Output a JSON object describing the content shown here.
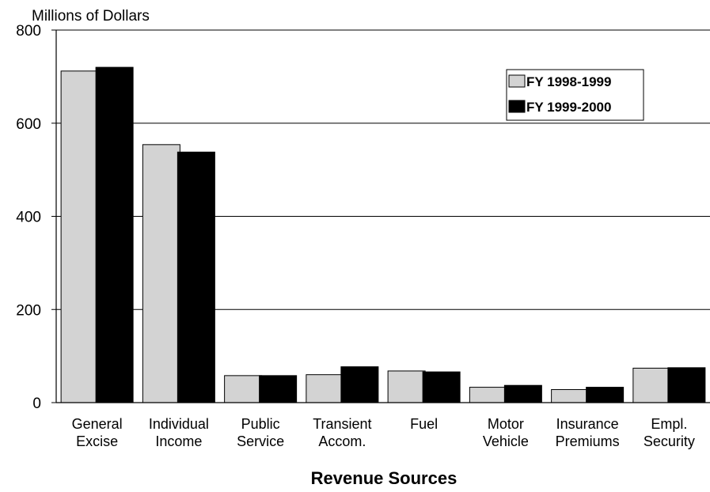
{
  "chart_data": {
    "type": "bar",
    "title": "",
    "ylabel": "Millions of Dollars",
    "xlabel": "Revenue Sources",
    "ylim": [
      0,
      800
    ],
    "yticks": [
      0,
      200,
      400,
      600,
      800
    ],
    "grid": true,
    "legend_position": "top-right",
    "categories": [
      [
        "General",
        "Excise"
      ],
      [
        "Individual",
        "Income"
      ],
      [
        "Public",
        "Service"
      ],
      [
        "Transient",
        "Accom."
      ],
      [
        "Fuel"
      ],
      [
        "Motor",
        "Vehicle"
      ],
      [
        "Insurance",
        "Premiums"
      ],
      [
        "Empl.",
        "Security"
      ]
    ],
    "series": [
      {
        "name": "FY 1998-1999",
        "color": "#d3d3d3",
        "values": [
          712,
          554,
          58,
          60,
          68,
          33,
          28,
          74
        ]
      },
      {
        "name": "FY 1999-2000",
        "color": "#000000",
        "values": [
          720,
          538,
          58,
          77,
          66,
          37,
          33,
          75
        ]
      }
    ]
  }
}
